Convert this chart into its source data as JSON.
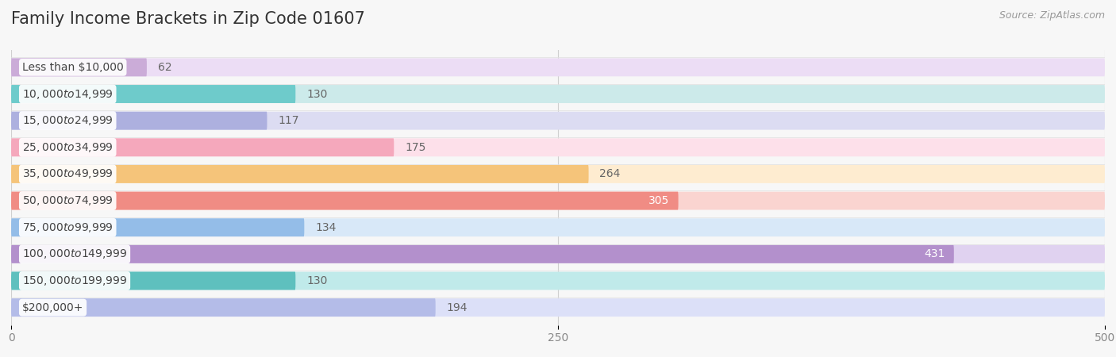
{
  "title": "Family Income Brackets in Zip Code 01607",
  "source": "Source: ZipAtlas.com",
  "categories": [
    "Less than $10,000",
    "$10,000 to $14,999",
    "$15,000 to $24,999",
    "$25,000 to $34,999",
    "$35,000 to $49,999",
    "$50,000 to $74,999",
    "$75,000 to $99,999",
    "$100,000 to $149,999",
    "$150,000 to $199,999",
    "$200,000+"
  ],
  "values": [
    62,
    130,
    117,
    175,
    264,
    305,
    134,
    431,
    130,
    194
  ],
  "bar_colors": [
    "#cbacd8",
    "#6ecbcb",
    "#adb0df",
    "#f5a8bc",
    "#f5c47a",
    "#f08c84",
    "#94bde8",
    "#b390cc",
    "#5ec0be",
    "#b4bce8"
  ],
  "bar_bg_colors": [
    "#ecddf5",
    "#cceaea",
    "#dcdcf2",
    "#fde0ea",
    "#feecd0",
    "#fad4d0",
    "#d8e8f8",
    "#e0d2f0",
    "#c0eaea",
    "#dce0f8"
  ],
  "xlim": [
    0,
    500
  ],
  "xticks": [
    0,
    250,
    500
  ],
  "label_color_white_indices": [
    5,
    7
  ],
  "background_color": "#f7f7f7",
  "bar_height": 0.68,
  "title_fontsize": 15,
  "label_fontsize": 10,
  "tick_fontsize": 10,
  "cat_label_fontsize": 10
}
